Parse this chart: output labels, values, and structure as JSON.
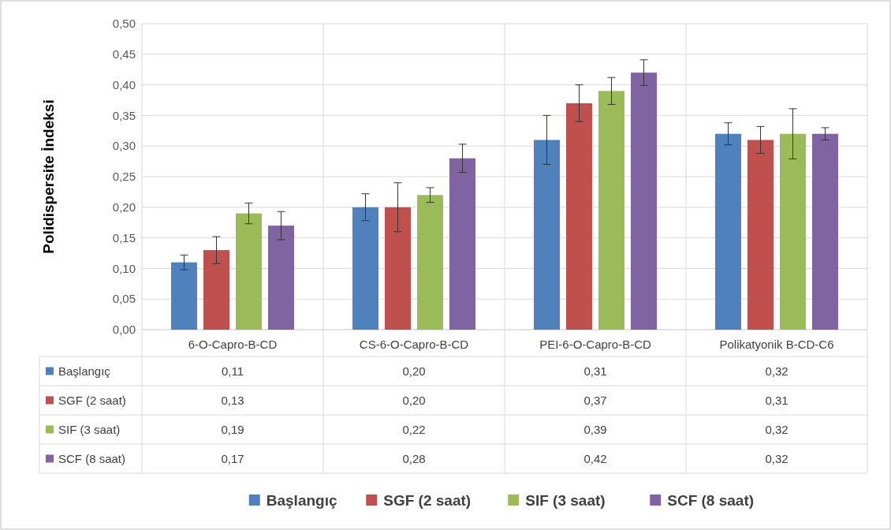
{
  "chart_data": {
    "type": "bar",
    "ylabel": "Polidispersite İndeksi",
    "categories": [
      "6-O-Capro-B-CD",
      "CS-6-O-Capro-B-CD",
      "PEI-6-O-Capro-B-CD",
      "Polikatyonik B-CD-C6"
    ],
    "series": [
      {
        "name": "Başlangıç",
        "color": "#4f81bd",
        "values": [
          0.11,
          0.2,
          0.31,
          0.32
        ],
        "errors": [
          0.012,
          0.022,
          0.04,
          0.018
        ],
        "value_labels": [
          "0,11",
          "0,20",
          "0,31",
          "0,32"
        ]
      },
      {
        "name": "SGF (2 saat)",
        "color": "#c0504d",
        "values": [
          0.13,
          0.2,
          0.37,
          0.31
        ],
        "errors": [
          0.022,
          0.04,
          0.03,
          0.022
        ],
        "value_labels": [
          "0,13",
          "0,20",
          "0,37",
          "0,31"
        ]
      },
      {
        "name": "SIF (3 saat)",
        "color": "#9bbb59",
        "values": [
          0.19,
          0.22,
          0.39,
          0.32
        ],
        "errors": [
          0.017,
          0.012,
          0.022,
          0.041
        ],
        "value_labels": [
          "0,19",
          "0,22",
          "0,39",
          "0,32"
        ]
      },
      {
        "name": "SCF (8 saat)",
        "color": "#8064a2",
        "values": [
          0.17,
          0.28,
          0.42,
          0.32
        ],
        "errors": [
          0.023,
          0.023,
          0.021,
          0.01
        ],
        "value_labels": [
          "0,17",
          "0,28",
          "0,42",
          "0,32"
        ]
      }
    ],
    "ylim": [
      0,
      0.5
    ],
    "yticks": [
      {
        "value": 0,
        "label": "0,00"
      },
      {
        "value": 0.05,
        "label": "0,05"
      },
      {
        "value": 0.1,
        "label": "0,10"
      },
      {
        "value": 0.15,
        "label": "0,15"
      },
      {
        "value": 0.2,
        "label": "0,20"
      },
      {
        "value": 0.25,
        "label": "0,25"
      },
      {
        "value": 0.3,
        "label": "0,30"
      },
      {
        "value": 0.35,
        "label": "0,35"
      },
      {
        "value": 0.4,
        "label": "0,40"
      },
      {
        "value": 0.45,
        "label": "0,45"
      },
      {
        "value": 0.5,
        "label": "0,50"
      }
    ],
    "grid": "y",
    "legend": "bottom"
  }
}
